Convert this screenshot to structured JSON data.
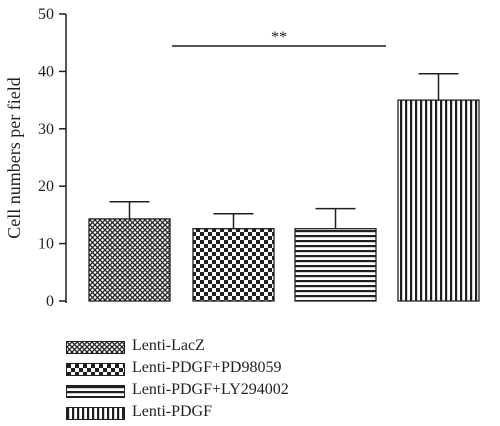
{
  "chart_data": {
    "type": "bar",
    "categories": [
      "Lenti-LacZ",
      "Lenti-PDGF+PD98059",
      "Lenti-PDGF+LY294002",
      "Lenti-PDGF"
    ],
    "values": [
      14.3,
      12.6,
      12.6,
      35.0
    ],
    "errors": [
      3.0,
      2.6,
      3.5,
      4.6
    ],
    "patterns": [
      "crosshatch",
      "checker",
      "horizontal-lines",
      "vertical-lines"
    ],
    "ylabel": "Cell numbers per field",
    "ylim": [
      0,
      50
    ],
    "yticks": [
      0,
      10,
      20,
      30,
      40,
      50
    ],
    "significance": {
      "from": 0,
      "to": 2,
      "label": "**"
    },
    "grid": false,
    "legend_position": "bottom-left"
  }
}
